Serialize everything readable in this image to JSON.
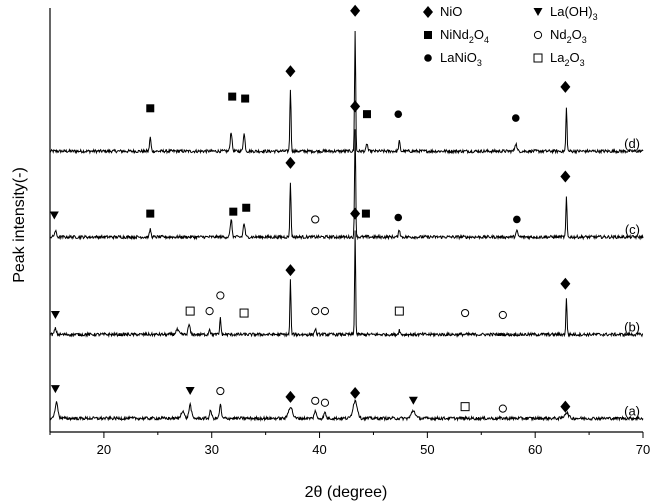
{
  "chart_data": {
    "type": "line",
    "title": "",
    "xlabel": "2θ (degree)",
    "ylabel": "Peak intensity(-)",
    "xlim": [
      15,
      70
    ],
    "xticks": [
      "20",
      "30",
      "40",
      "50",
      "60",
      "70"
    ],
    "yticks_shown": false,
    "grid": false,
    "legend": {
      "placement": "top-right",
      "entries": [
        {
          "symbol": "diamond",
          "main": "NiO",
          "sub": "",
          "tail": ""
        },
        {
          "symbol": "triangle",
          "main": "La(OH)",
          "sub": "3",
          "tail": ""
        },
        {
          "symbol": "square",
          "main": "NiNd",
          "sub": "2",
          "tail": "O",
          "sub2": "4"
        },
        {
          "symbol": "open-circle",
          "main": "Nd",
          "sub": "2",
          "tail": "O",
          "sub2": "3"
        },
        {
          "symbol": "circle",
          "main": "LaNiO",
          "sub": "3",
          "tail": ""
        },
        {
          "symbol": "open-square",
          "main": "La",
          "sub": "2",
          "tail": "O",
          "sub2": "3"
        }
      ]
    },
    "series": [
      {
        "name": "(d)",
        "baseline": 0.72,
        "peaks": [
          [
            24.3,
            0.035,
            0.15
          ],
          [
            31.8,
            0.05,
            0.18
          ],
          [
            33.0,
            0.045,
            0.18
          ],
          [
            37.3,
            0.16,
            0.12
          ],
          [
            43.3,
            0.31,
            0.11
          ],
          [
            44.4,
            0.02,
            0.15
          ],
          [
            47.4,
            0.025,
            0.15
          ],
          [
            58.2,
            0.02,
            0.2
          ],
          [
            62.9,
            0.11,
            0.12
          ]
        ],
        "markers": [
          {
            "x": 24.3,
            "symbol": "square",
            "y": 0.83
          },
          {
            "x": 31.9,
            "symbol": "square",
            "y": 0.86
          },
          {
            "x": 33.1,
            "symbol": "square",
            "y": 0.855
          },
          {
            "x": 37.3,
            "symbol": "diamond",
            "y": 0.925
          },
          {
            "x": 43.3,
            "symbol": "diamond",
            "y": 1.08
          },
          {
            "x": 44.4,
            "symbol": "square",
            "y": 0.815
          },
          {
            "x": 47.3,
            "symbol": "circle",
            "y": 0.815
          },
          {
            "x": 58.2,
            "symbol": "circle",
            "y": 0.805
          },
          {
            "x": 62.8,
            "symbol": "diamond",
            "y": 0.885
          }
        ]
      },
      {
        "name": "(c)",
        "baseline": 0.5,
        "peaks": [
          [
            15.5,
            0.015,
            0.2
          ],
          [
            24.3,
            0.02,
            0.15
          ],
          [
            31.8,
            0.045,
            0.18
          ],
          [
            33.0,
            0.035,
            0.18
          ],
          [
            37.3,
            0.14,
            0.12
          ],
          [
            43.3,
            0.28,
            0.11
          ],
          [
            47.4,
            0.02,
            0.15
          ],
          [
            58.3,
            0.015,
            0.2
          ],
          [
            62.9,
            0.1,
            0.12
          ]
        ],
        "markers": [
          {
            "x": 15.4,
            "symbol": "triangle",
            "y": 0.555
          },
          {
            "x": 24.3,
            "symbol": "square",
            "y": 0.56
          },
          {
            "x": 32.0,
            "symbol": "square",
            "y": 0.565
          },
          {
            "x": 33.2,
            "symbol": "square",
            "y": 0.575
          },
          {
            "x": 37.3,
            "symbol": "diamond",
            "y": 0.69
          },
          {
            "x": 39.6,
            "symbol": "open-circle",
            "y": 0.545
          },
          {
            "x": 43.3,
            "symbol": "diamond",
            "y": 0.835
          },
          {
            "x": 44.3,
            "symbol": "square",
            "y": 0.56
          },
          {
            "x": 47.3,
            "symbol": "circle",
            "y": 0.55
          },
          {
            "x": 58.3,
            "symbol": "circle",
            "y": 0.545
          },
          {
            "x": 62.8,
            "symbol": "diamond",
            "y": 0.655
          }
        ]
      },
      {
        "name": "(b)",
        "baseline": 0.25,
        "peaks": [
          [
            15.5,
            0.015,
            0.2
          ],
          [
            26.8,
            0.012,
            0.3
          ],
          [
            27.9,
            0.025,
            0.2
          ],
          [
            29.8,
            0.015,
            0.15
          ],
          [
            30.8,
            0.045,
            0.12
          ],
          [
            37.3,
            0.14,
            0.11
          ],
          [
            39.6,
            0.015,
            0.15
          ],
          [
            43.3,
            0.27,
            0.1
          ],
          [
            47.4,
            0.012,
            0.15
          ],
          [
            62.9,
            0.09,
            0.12
          ]
        ],
        "markers": [
          {
            "x": 15.5,
            "symbol": "triangle",
            "y": 0.3
          },
          {
            "x": 28.0,
            "symbol": "open-square",
            "y": 0.31
          },
          {
            "x": 29.8,
            "symbol": "open-circle",
            "y": 0.31
          },
          {
            "x": 30.8,
            "symbol": "open-circle",
            "y": 0.35
          },
          {
            "x": 33.0,
            "symbol": "open-square",
            "y": 0.305
          },
          {
            "x": 37.3,
            "symbol": "diamond",
            "y": 0.415
          },
          {
            "x": 39.6,
            "symbol": "open-circle",
            "y": 0.31
          },
          {
            "x": 40.5,
            "symbol": "open-circle",
            "y": 0.31
          },
          {
            "x": 43.3,
            "symbol": "diamond",
            "y": 0.56
          },
          {
            "x": 47.4,
            "symbol": "open-square",
            "y": 0.31
          },
          {
            "x": 53.5,
            "symbol": "open-circle",
            "y": 0.305
          },
          {
            "x": 57.0,
            "symbol": "open-circle",
            "y": 0.3
          },
          {
            "x": 62.8,
            "symbol": "diamond",
            "y": 0.38
          }
        ]
      },
      {
        "name": "(a)",
        "baseline": 0.035,
        "peaks": [
          [
            15.6,
            0.04,
            0.3
          ],
          [
            27.3,
            0.02,
            0.3
          ],
          [
            28.0,
            0.035,
            0.25
          ],
          [
            29.9,
            0.02,
            0.2
          ],
          [
            30.8,
            0.035,
            0.18
          ],
          [
            37.3,
            0.03,
            0.4
          ],
          [
            39.6,
            0.02,
            0.2
          ],
          [
            40.5,
            0.015,
            0.2
          ],
          [
            43.3,
            0.045,
            0.45
          ],
          [
            48.7,
            0.02,
            0.4
          ],
          [
            62.9,
            0.015,
            0.4
          ]
        ],
        "markers": [
          {
            "x": 15.5,
            "symbol": "triangle",
            "y": 0.11
          },
          {
            "x": 28.0,
            "symbol": "triangle",
            "y": 0.105
          },
          {
            "x": 30.8,
            "symbol": "open-circle",
            "y": 0.105
          },
          {
            "x": 37.3,
            "symbol": "diamond",
            "y": 0.09
          },
          {
            "x": 39.6,
            "symbol": "open-circle",
            "y": 0.08
          },
          {
            "x": 40.5,
            "symbol": "open-circle",
            "y": 0.075
          },
          {
            "x": 43.3,
            "symbol": "diamond",
            "y": 0.1
          },
          {
            "x": 48.7,
            "symbol": "triangle",
            "y": 0.08
          },
          {
            "x": 53.5,
            "symbol": "open-square",
            "y": 0.065
          },
          {
            "x": 57.0,
            "symbol": "open-circle",
            "y": 0.06
          },
          {
            "x": 62.8,
            "symbol": "diamond",
            "y": 0.065
          }
        ]
      }
    ]
  }
}
